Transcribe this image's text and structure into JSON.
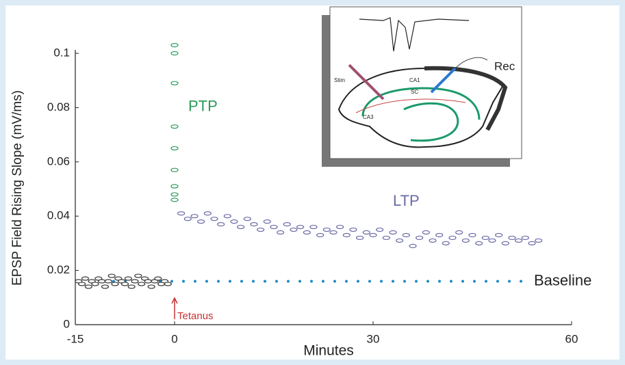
{
  "chart_data": {
    "type": "scatter",
    "y_label": "EPSP Field Rising Slope (mV/ms)",
    "x_label": "Minutes",
    "xlim": [
      -15,
      60
    ],
    "xticks": [
      -15,
      0,
      30,
      60
    ],
    "ylim": [
      0,
      0.1
    ],
    "yticks": [
      0,
      0.02,
      0.04,
      0.06,
      0.08,
      0.1
    ],
    "series": [
      {
        "color": "#333333",
        "x": [
          -14.5,
          -14,
          -13.5,
          -13,
          -12.5,
          -12,
          -11.5,
          -11,
          -10.5,
          -10,
          -9.5,
          -9,
          -8.5,
          -8,
          -7.5,
          -7,
          -6.5,
          -6,
          -5.5,
          -5,
          -4.5,
          -4,
          -3.5,
          -3,
          -2.5,
          -2,
          -1.5,
          -1
        ],
        "values": [
          0.016,
          0.015,
          0.017,
          0.014,
          0.016,
          0.015,
          0.017,
          0.016,
          0.014,
          0.016,
          0.018,
          0.015,
          0.017,
          0.016,
          0.015,
          0.017,
          0.014,
          0.016,
          0.018,
          0.015,
          0.017,
          0.016,
          0.014,
          0.016,
          0.017,
          0.015,
          0.016,
          0.015
        ]
      },
      {
        "name": "PTP",
        "color": "#2a9a5a",
        "x": [
          0,
          0,
          0,
          0,
          0,
          0,
          0,
          0,
          0
        ],
        "values": [
          0.103,
          0.1,
          0.089,
          0.073,
          0.065,
          0.057,
          0.051,
          0.048,
          0.046
        ]
      },
      {
        "name": "LTP",
        "color": "#6a6aa8",
        "x": [
          1,
          2,
          3,
          4,
          5,
          6,
          7,
          8,
          9,
          10,
          11,
          12,
          13,
          14,
          15,
          16,
          17,
          18,
          19,
          20,
          21,
          22,
          23,
          24,
          25,
          26,
          27,
          28,
          29,
          30,
          31,
          32,
          33,
          34,
          35,
          36,
          37,
          38,
          39,
          40,
          41,
          42,
          43,
          44,
          45,
          46,
          47,
          48,
          49,
          50,
          51,
          52,
          53,
          54,
          55
        ],
        "values": [
          0.041,
          0.039,
          0.04,
          0.038,
          0.041,
          0.039,
          0.037,
          0.04,
          0.038,
          0.036,
          0.039,
          0.037,
          0.035,
          0.038,
          0.036,
          0.034,
          0.037,
          0.035,
          0.036,
          0.034,
          0.036,
          0.033,
          0.035,
          0.034,
          0.036,
          0.033,
          0.035,
          0.032,
          0.034,
          0.033,
          0.035,
          0.032,
          0.034,
          0.031,
          0.033,
          0.029,
          0.032,
          0.034,
          0.031,
          0.033,
          0.03,
          0.032,
          0.034,
          0.031,
          0.033,
          0.03,
          0.032,
          0.031,
          0.033,
          0.03,
          0.032,
          0.031,
          0.032,
          0.03,
          0.031
        ]
      }
    ],
    "baseline": {
      "label": "Baseline",
      "value": 0.016,
      "color": "#1a8ac8"
    },
    "stimulus": {
      "label": "Tetanus",
      "x": 0,
      "color": "#c83030"
    }
  },
  "inset": {
    "labels": [
      "Rec",
      "Stim",
      "CA1",
      "SC",
      "CA3"
    ]
  }
}
